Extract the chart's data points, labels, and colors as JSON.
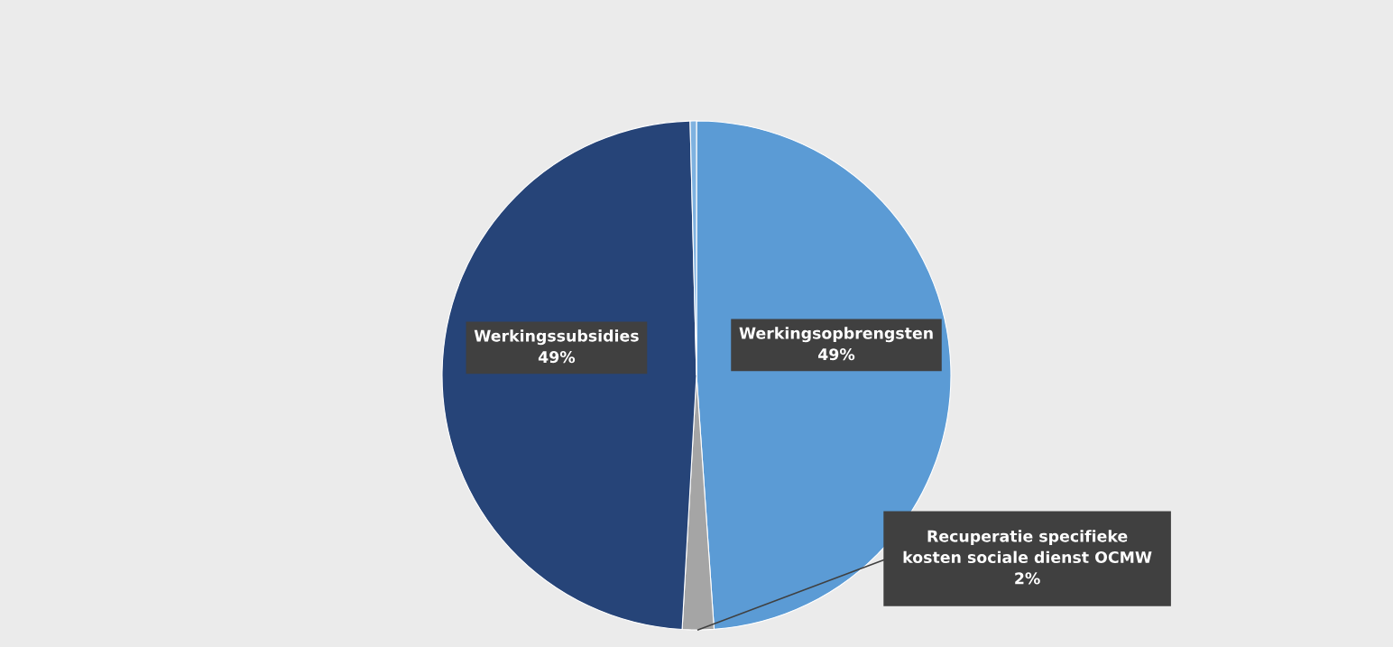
{
  "chart_data": {
    "type": "pie",
    "categories": [
      "Werkingsopbrengsten",
      "Recuperatie specifieke kosten sociale dienst OCMW",
      "Werkingssubsidies",
      null
    ],
    "values": [
      48.9,
      2.0,
      48.7,
      0.4
    ],
    "value_labels": [
      "49%",
      "2%",
      "49%",
      null
    ],
    "colors": [
      "#5b9bd5",
      "#a5a5a5",
      "#264478",
      "#7fb2e0"
    ],
    "legend": false
  }
}
